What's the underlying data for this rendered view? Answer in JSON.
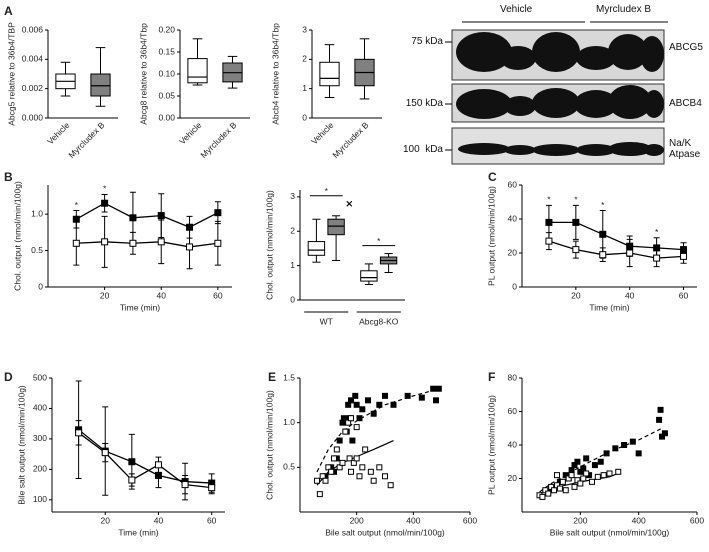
{
  "panels": [
    "A",
    "B",
    "C",
    "D",
    "E",
    "F"
  ],
  "blot": {
    "groups": [
      "Vehicle",
      "Myrcludex B"
    ],
    "markers": [
      "75 kDa",
      "150 kDa",
      "100  kDa"
    ],
    "proteins": [
      "ABCG5",
      "ABCB4",
      "Na/K Atpase"
    ]
  },
  "chart_data": [
    {
      "type": "box",
      "y_label": "Abcg5 relative to 36b4/TBP",
      "categories": [
        "Vehicle",
        "Myrcludex B"
      ],
      "boxes": [
        {
          "fill": "#ffffff",
          "min": 0.0015,
          "q1": 0.002,
          "median": 0.0025,
          "q3": 0.003,
          "max": 0.0038
        },
        {
          "fill": "#808080",
          "min": 0.0008,
          "q1": 0.0015,
          "median": 0.0022,
          "q3": 0.003,
          "max": 0.0048
        }
      ],
      "ylim": [
        0,
        0.006
      ],
      "yticks": [
        {
          "value": 0,
          "label": "0.000"
        },
        {
          "value": 0.002,
          "label": "0.002"
        },
        {
          "value": 0.004,
          "label": "0.004"
        },
        {
          "value": 0.006,
          "label": "0.006"
        }
      ]
    },
    {
      "type": "box",
      "y_label": "Abcg8 relative to 36b4/Tbp",
      "categories": [
        "Vehicle",
        "Myrcludex B"
      ],
      "boxes": [
        {
          "fill": "#ffffff",
          "min": 0.075,
          "q1": 0.08,
          "median": 0.093,
          "q3": 0.135,
          "max": 0.18
        },
        {
          "fill": "#808080",
          "min": 0.068,
          "q1": 0.082,
          "median": 0.103,
          "q3": 0.125,
          "max": 0.14
        }
      ],
      "ylim": [
        0,
        0.2
      ],
      "yticks": [
        {
          "value": 0,
          "label": "0.00"
        },
        0.05,
        {
          "value": 0.1,
          "label": "0.10"
        },
        0.15,
        {
          "value": 0.2,
          "label": "0.20"
        }
      ]
    },
    {
      "type": "box",
      "y_label": "Abcb4 relative to 36b4/Tbp",
      "categories": [
        "Vehicle",
        "Myrcludex B"
      ],
      "boxes": [
        {
          "fill": "#ffffff",
          "min": 0.7,
          "q1": 1.1,
          "median": 1.35,
          "q3": 1.9,
          "max": 2.5
        },
        {
          "fill": "#808080",
          "min": 0.65,
          "q1": 1.1,
          "median": 1.55,
          "q3": 2.0,
          "max": 2.7
        }
      ],
      "ylim": [
        0,
        3
      ],
      "yticks": [
        0,
        1,
        2,
        3
      ]
    },
    {
      "type": "line",
      "y_label": "Chol. output (nmol/min/100g)",
      "x_label": "Time (min)",
      "x": [
        10,
        20,
        30,
        40,
        50,
        60
      ],
      "xlim": [
        0,
        65
      ],
      "xticks": [
        20,
        40,
        60
      ],
      "series": [
        {
          "color": "#000000",
          "fill": "#000000",
          "values": [
            0.93,
            1.15,
            0.95,
            0.98,
            0.82,
            1.02
          ],
          "errors": [
            0.12,
            0.12,
            0.35,
            0.3,
            0.15,
            0.15
          ]
        },
        {
          "color": "#000000",
          "fill": "#ffffff",
          "values": [
            0.6,
            0.62,
            0.6,
            0.62,
            0.55,
            0.6
          ],
          "errors": [
            0.3,
            0.35,
            0.15,
            0.3,
            0.3,
            0.3
          ]
        }
      ],
      "annotations": [
        {
          "text": "*",
          "x": 10
        },
        {
          "text": "*",
          "x": 20
        }
      ],
      "ylim": [
        0,
        1.4
      ],
      "yticks": [
        0,
        0.5,
        {
          "value": 1,
          "label": "1.0"
        }
      ]
    },
    {
      "type": "box",
      "y_label": "Chol. output (nmol/min/100g)",
      "categories": [
        "WT",
        "Abcg8-KO"
      ],
      "series": [
        {
          "fill": "#ffffff",
          "boxes": [
            {
              "min": 1.1,
              "q1": 1.3,
              "median": 1.45,
              "q3": 1.7,
              "max": 2.35
            },
            {
              "min": 0.45,
              "q1": 0.55,
              "median": 0.65,
              "q3": 0.85,
              "max": 1.05
            }
          ]
        },
        {
          "fill": "#808080",
          "boxes": [
            {
              "min": 1.15,
              "q1": 1.9,
              "median": 2.15,
              "q3": 2.35,
              "max": 2.45,
              "outliers": [
                2.8
              ]
            },
            {
              "min": 0.8,
              "q1": 1.05,
              "median": 1.15,
              "q3": 1.25,
              "max": 1.35
            }
          ]
        }
      ],
      "annotations": [
        "*",
        "*"
      ],
      "ylim": [
        0,
        3.2
      ],
      "yticks": [
        0,
        1,
        2,
        3
      ]
    },
    {
      "type": "line",
      "y_label": "PL output (nmol/min/100g)",
      "x_label": "Time (min)",
      "x": [
        10,
        20,
        30,
        40,
        50,
        60
      ],
      "xlim": [
        0,
        65
      ],
      "xticks": [
        20,
        40,
        60
      ],
      "series": [
        {
          "color": "#000000",
          "fill": "#000000",
          "values": [
            38,
            38,
            31,
            24,
            23,
            22
          ],
          "errors": [
            10,
            10,
            14,
            6,
            6,
            4
          ]
        },
        {
          "color": "#000000",
          "fill": "#ffffff",
          "values": [
            27,
            22,
            19,
            20,
            17,
            18
          ],
          "errors": [
            5,
            5,
            4,
            8,
            5,
            4
          ]
        }
      ],
      "annotations": [
        {
          "text": "*",
          "x": 10
        },
        {
          "text": "*",
          "x": 20
        },
        {
          "text": "*",
          "x": 30
        },
        {
          "text": "*",
          "x": 50
        }
      ],
      "ylim": [
        0,
        60
      ],
      "yticks": [
        0,
        20,
        40,
        60
      ]
    },
    {
      "type": "line",
      "y_label": "Bile salt output (nmol/min/100g)",
      "x_label": "Time (min)",
      "x": [
        10,
        20,
        30,
        40,
        50,
        60
      ],
      "xlim": [
        0,
        65
      ],
      "xticks": [
        20,
        40,
        60
      ],
      "series": [
        {
          "color": "#000000",
          "fill": "#000000",
          "values": [
            330,
            260,
            225,
            180,
            160,
            155
          ],
          "errors": [
            160,
            145,
            90,
            40,
            60,
            30
          ]
        },
        {
          "color": "#000000",
          "fill": "#ffffff",
          "values": [
            320,
            255,
            165,
            215,
            150,
            140
          ],
          "errors": [
            40,
            30,
            20,
            25,
            30,
            20
          ]
        }
      ],
      "ylim": [
        60,
        500
      ],
      "yticks": [
        100,
        200,
        300,
        400,
        500
      ]
    },
    {
      "type": "scatter",
      "y_label": "Chol. output (nmol/min/100g)",
      "x_label": "Bile salt output (nmol/min/100g)",
      "xlim": [
        0,
        600
      ],
      "xticks": [
        200,
        400,
        600
      ],
      "ylim": [
        0,
        1.5
      ],
      "yticks": [
        0.5,
        {
          "value": 1,
          "label": "1.0"
        },
        1.5
      ],
      "series": [
        {
          "color": "#000000",
          "fill": "#000000",
          "x": [
            90,
            110,
            120,
            130,
            140,
            150,
            155,
            165,
            170,
            175,
            180,
            185,
            195,
            200,
            210,
            220,
            240,
            260,
            280,
            300,
            330,
            380,
            430,
            470,
            490,
            480
          ],
          "y": [
            0.4,
            0.5,
            0.45,
            0.6,
            0.8,
            1.0,
            1.05,
            0.9,
            1.2,
            1.05,
            1.25,
            0.8,
            1.3,
            1.2,
            1.05,
            1.15,
            1.25,
            1.1,
            1.2,
            1.3,
            1.2,
            1.3,
            1.28,
            1.38,
            1.38,
            1.25
          ],
          "fit_style": "dashed",
          "fit": {
            "x": [
              60,
              100,
              150,
              200,
              300,
              400,
              480
            ],
            "y": [
              0.45,
              0.7,
              0.9,
              1.02,
              1.2,
              1.3,
              1.37
            ]
          }
        },
        {
          "color": "#000000",
          "fill": "#ffffff",
          "x": [
            60,
            70,
            80,
            90,
            100,
            110,
            120,
            130,
            140,
            150,
            160,
            170,
            175,
            180,
            190,
            200,
            210,
            220,
            230,
            250,
            260,
            280,
            300,
            320,
            180,
            200
          ],
          "y": [
            0.35,
            0.2,
            0.4,
            0.35,
            0.5,
            0.45,
            0.6,
            0.7,
            0.5,
            0.55,
            0.9,
            1.0,
            0.6,
            0.45,
            0.55,
            0.6,
            0.4,
            0.5,
            0.7,
            0.45,
            0.35,
            0.5,
            0.4,
            0.3,
            1.05,
            0.95
          ],
          "fit_style": "solid",
          "fit": {
            "x": [
              60,
              100,
              150,
              200,
              260,
              330
            ],
            "y": [
              0.3,
              0.45,
              0.55,
              0.62,
              0.7,
              0.8
            ]
          }
        }
      ]
    },
    {
      "type": "scatter",
      "y_label": "PL output (nmol/min/100g)",
      "x_label": "Bile salt output (nmol/min/100g)",
      "xlim": [
        0,
        600
      ],
      "xticks": [
        200,
        400,
        600
      ],
      "ylim": [
        0,
        80
      ],
      "yticks": [
        20,
        40,
        60,
        80
      ],
      "series": [
        {
          "color": "#000000",
          "fill": "#000000",
          "x": [
            90,
            110,
            130,
            150,
            160,
            170,
            180,
            190,
            200,
            210,
            220,
            230,
            250,
            270,
            290,
            320,
            350,
            380,
            400,
            470,
            480,
            490,
            475
          ],
          "y": [
            12,
            14,
            18,
            22,
            20,
            25,
            28,
            30,
            24,
            26,
            32,
            22,
            28,
            30,
            35,
            38,
            40,
            42,
            35,
            55,
            45,
            47,
            61
          ],
          "fit_style": "dashed",
          "fit": {
            "x": [
              60,
              100,
              200,
              300,
              400,
              480
            ],
            "y": [
              12,
              17,
              27,
              36,
              43,
              50
            ]
          }
        },
        {
          "color": "#000000",
          "fill": "#ffffff",
          "x": [
            60,
            70,
            80,
            90,
            100,
            110,
            120,
            130,
            140,
            150,
            160,
            170,
            180,
            190,
            200,
            210,
            220,
            240,
            260,
            280,
            300,
            330,
            120
          ],
          "y": [
            10,
            9,
            13,
            11,
            15,
            13,
            16,
            14,
            18,
            13,
            20,
            22,
            15,
            19,
            17,
            20,
            23,
            18,
            21,
            22,
            23,
            24,
            22
          ],
          "fit_style": "solid",
          "fit": {
            "x": [
              60,
              100,
              200,
              300,
              330
            ],
            "y": [
              11,
              14,
              18,
              21,
              23
            ]
          }
        }
      ]
    }
  ]
}
